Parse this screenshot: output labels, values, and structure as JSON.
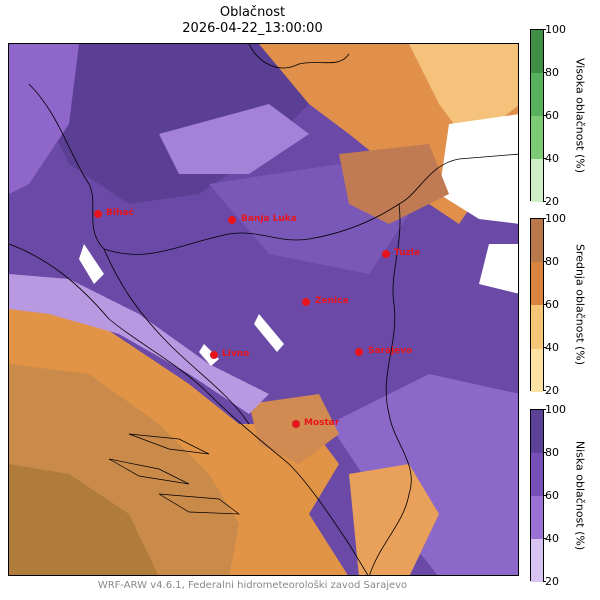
{
  "title": {
    "line1": "Oblačnost",
    "line2": "2026-04-22_13:00:00"
  },
  "cities": [
    "Bihać",
    "Banja Luka",
    "Tuzla",
    "Zenica",
    "Livno",
    "Sarajevo",
    "Mostar"
  ],
  "colorbars": [
    {
      "label": "Visoka oblačnost (%)",
      "ticks": [
        "100",
        "80",
        "60",
        "40",
        "20"
      ],
      "colors": [
        "#3f8f46",
        "#58b15c",
        "#7ccb74",
        "#a8dc97",
        "#cdefc3"
      ]
    },
    {
      "label": "Srednja oblačnost (%)",
      "ticks": [
        "100",
        "80",
        "60",
        "40",
        "20"
      ],
      "colors": [
        "#b8784a",
        "#d9833f",
        "#eda75a",
        "#f6c678",
        "#fde2a1"
      ]
    },
    {
      "label": "Niska oblačnost (%)",
      "ticks": [
        "100",
        "80",
        "60",
        "40",
        "20"
      ],
      "colors": [
        "#5c4296",
        "#7650b8",
        "#9b72d4",
        "#bb99e3",
        "#d9c3f2"
      ]
    }
  ],
  "footer": "WRF-ARW v4.6.1, Federalni hidrometeorološki zavod Sarajevo"
}
